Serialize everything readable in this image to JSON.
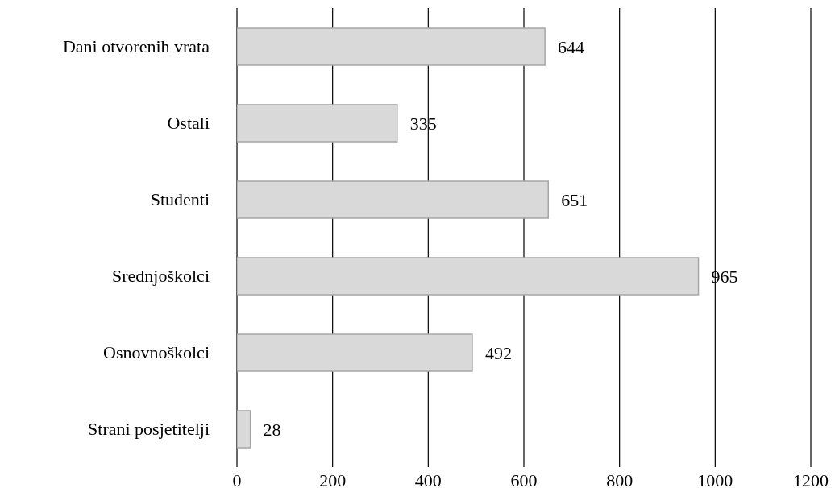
{
  "chart_data": {
    "type": "bar",
    "orientation": "horizontal",
    "categories": [
      "Dani otvorenih vrata",
      "Ostali",
      "Studenti",
      "Srednjoškolci",
      "Osnovnoškolci",
      "Strani posjetitelji"
    ],
    "values": [
      644,
      335,
      651,
      965,
      492,
      28
    ],
    "color": "#d9d9d9",
    "xlim": [
      0,
      1200
    ],
    "xticks": [
      0,
      200,
      400,
      600,
      800,
      1000,
      1200
    ],
    "grid": "x",
    "data_labels": true
  }
}
